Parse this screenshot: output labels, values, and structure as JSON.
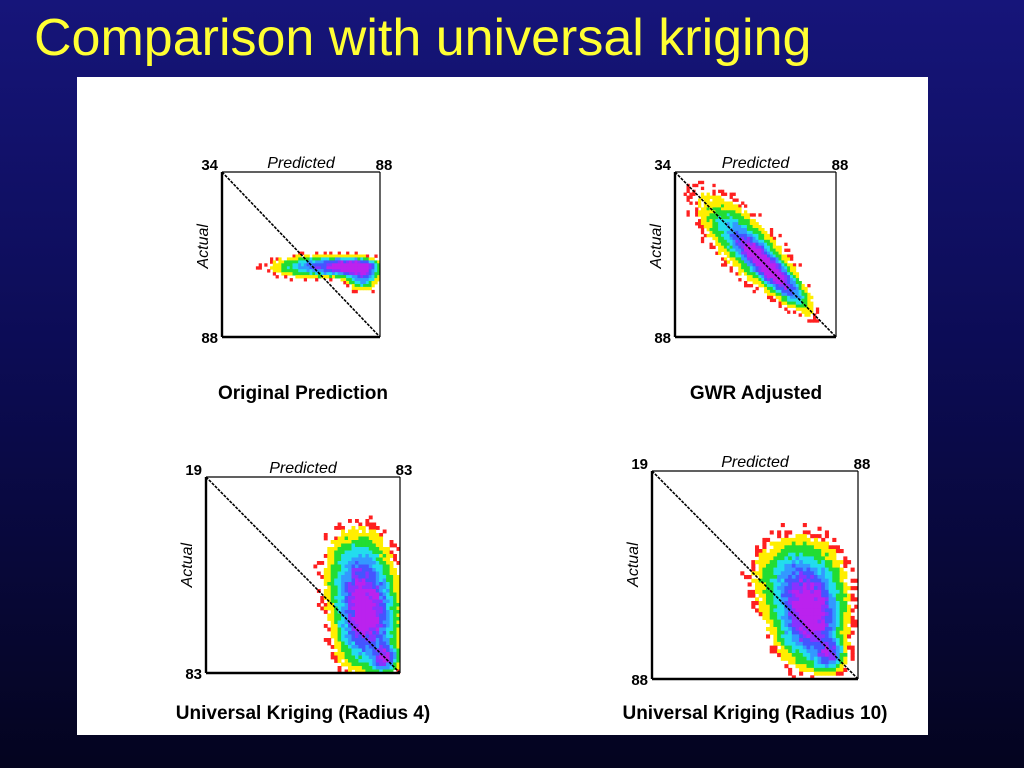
{
  "slide": {
    "title": "Comparison with universal kriging"
  },
  "colors": {
    "background_top": "#16157a",
    "background_bottom": "#04041f",
    "title": "#ffff33",
    "density_ramp": [
      "#ff2020",
      "#ffee00",
      "#22dd33",
      "#22ddee",
      "#3399ff",
      "#4455ff",
      "#8833ff",
      "#bb22ee"
    ]
  },
  "chart_data": [
    {
      "type": "heatmap",
      "title": "Original Prediction",
      "xlabel": "Predicted",
      "ylabel": "Actual",
      "xlim": [
        34,
        88
      ],
      "ylim": [
        34,
        88
      ],
      "x_tick_labels": [
        "34",
        "88"
      ],
      "y_tick_labels": [
        "88"
      ],
      "reference_line": "1:1",
      "density_blobs": [
        {
          "x": 78,
          "y": 65,
          "sx": 5,
          "sy": 1.5,
          "weight": 1.0
        },
        {
          "x": 68,
          "y": 65,
          "sx": 9,
          "sy": 2,
          "weight": 0.6
        },
        {
          "x": 82,
          "y": 68,
          "sx": 3,
          "sy": 2.5,
          "weight": 0.6
        }
      ]
    },
    {
      "type": "heatmap",
      "title": "GWR Adjusted",
      "xlabel": "Predicted",
      "ylabel": "Actual",
      "xlim": [
        34,
        88
      ],
      "ylim": [
        34,
        88
      ],
      "x_tick_labels": [
        "34",
        "88"
      ],
      "y_tick_labels": [
        "34",
        "88"
      ],
      "reference_line": "1:1",
      "density_blobs": [
        {
          "x": 66,
          "y": 66,
          "along": 9,
          "across": 2.2,
          "weight": 1.0
        },
        {
          "x": 58,
          "y": 58,
          "along": 12,
          "across": 4.5,
          "weight": 0.45
        }
      ]
    },
    {
      "type": "heatmap",
      "title": "Universal Kriging (Radius 4)",
      "xlabel": "Predicted",
      "ylabel": "Actual",
      "xlim": [
        19,
        83
      ],
      "ylim": [
        19,
        83
      ],
      "x_tick_labels": [
        "19",
        "83"
      ],
      "y_tick_labels": [
        "19",
        "83"
      ],
      "reference_line": "1:1",
      "density_blobs": [
        {
          "x": 72,
          "y": 65,
          "sx": 5.5,
          "sy": 9,
          "weight": 1.0
        },
        {
          "x": 78,
          "y": 78,
          "sx": 2.5,
          "sy": 2.5,
          "weight": 0.8
        },
        {
          "x": 69,
          "y": 50,
          "sx": 6,
          "sy": 8,
          "weight": 0.45
        }
      ]
    },
    {
      "type": "heatmap",
      "title": "Universal Kriging (Radius 10)",
      "xlabel": "Predicted",
      "ylabel": "Actual",
      "xlim": [
        19,
        88
      ],
      "ylim": [
        19,
        88
      ],
      "x_tick_labels": [
        "19",
        "88"
      ],
      "y_tick_labels": [
        "19",
        "88"
      ],
      "reference_line": "1:1",
      "density_blobs": [
        {
          "x": 72,
          "y": 68,
          "sx": 6,
          "sy": 8,
          "weight": 1.0
        },
        {
          "x": 68,
          "y": 55,
          "sx": 8,
          "sy": 8,
          "weight": 0.5
        },
        {
          "x": 78,
          "y": 80,
          "sx": 3,
          "sy": 3,
          "weight": 0.7
        }
      ]
    }
  ]
}
